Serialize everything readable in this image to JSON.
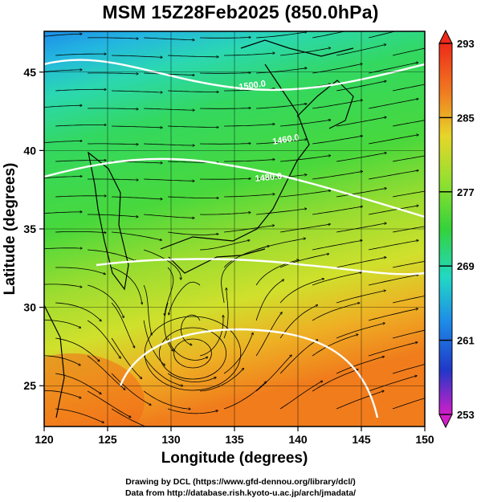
{
  "title": "MSM 15Z28Feb2025 (850.0hPa)",
  "credits": {
    "line1": "Drawing by DCL (https://www.gfd-dennou.org/library/dcl/)",
    "line2": "Data from http://database.rish.kyoto-u.ac.jp/arch/jmadata/"
  },
  "map": {
    "xlabel": "Longitude (degrees)",
    "ylabel": "Latitude  (degrees)",
    "xlim": [
      120,
      150
    ],
    "ylim": [
      22.4,
      47.6
    ],
    "xticks": [
      "120",
      "125",
      "130",
      "135",
      "140",
      "145",
      "150"
    ],
    "xtick_values": [
      120,
      125,
      130,
      135,
      140,
      145,
      150
    ],
    "yticks": [
      "25",
      "30",
      "35",
      "40",
      "45"
    ],
    "ytick_values": [
      25,
      30,
      35,
      40,
      45
    ],
    "contour_labels": [
      "1500.0",
      "1460.0",
      "1480.0"
    ],
    "colors": {
      "cold": "#1f6fe0",
      "cyan": "#22d6c8",
      "green": "#3fd23a",
      "yellow": "#d8e22a",
      "orange": "#f0a020",
      "warm": "#ee4a18"
    }
  },
  "colorbar": {
    "ticks": [
      "293",
      "285",
      "277",
      "269",
      "261",
      "253"
    ],
    "tick_values": [
      293,
      285,
      277,
      269,
      261,
      253
    ],
    "range": [
      253,
      293
    ]
  }
}
